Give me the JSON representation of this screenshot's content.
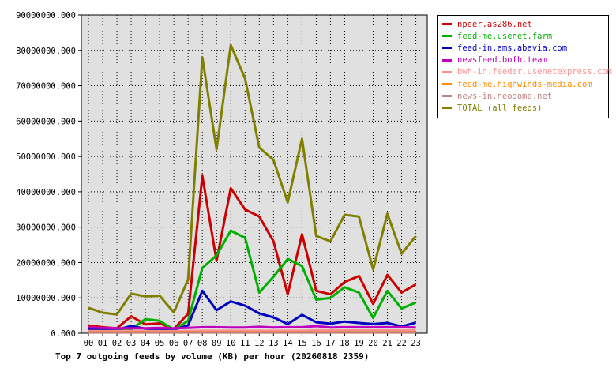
{
  "chart_data": {
    "type": "line",
    "title": "Top 7 outgoing feeds by volume (KB) per hour (20260818 2359)",
    "xlabel": "",
    "ylabel": "",
    "x": [
      "00",
      "01",
      "02",
      "03",
      "04",
      "05",
      "06",
      "07",
      "08",
      "09",
      "10",
      "11",
      "12",
      "13",
      "14",
      "15",
      "16",
      "17",
      "18",
      "19",
      "20",
      "21",
      "22",
      "23"
    ],
    "y_ticks": [
      "0.000",
      "10000000.000",
      "20000000.000",
      "30000000.000",
      "40000000.000",
      "50000000.000",
      "60000000.000",
      "70000000.000",
      "80000000.000",
      "90000000.000"
    ],
    "ylim": [
      0,
      90000000
    ],
    "grid": true,
    "legend_position": "right",
    "background": "#e0e0e0",
    "series": [
      {
        "name": "npeer.as286.net",
        "color": "#cc0000",
        "values": [
          2200000,
          1700000,
          1400000,
          4800000,
          2500000,
          2800000,
          1200000,
          5500000,
          44500000,
          20500000,
          41000000,
          35000000,
          33000000,
          26000000,
          11000000,
          28000000,
          12000000,
          11000000,
          14500000,
          16200000,
          8300000,
          16500000,
          11500000,
          13800000
        ]
      },
      {
        "name": "feed-me.usenet.farm",
        "color": "#00b000",
        "values": [
          1300000,
          1200000,
          1100000,
          1100000,
          4000000,
          3500000,
          1000000,
          3500000,
          18500000,
          22000000,
          29000000,
          27000000,
          11500000,
          16000000,
          21000000,
          19000000,
          9500000,
          10000000,
          13000000,
          11500000,
          4300000,
          12000000,
          7000000,
          8700000
        ]
      },
      {
        "name": "feed-in.ams.abavia.com",
        "color": "#0000c0",
        "values": [
          1000000,
          1000000,
          1000000,
          2000000,
          1300000,
          1000000,
          1000000,
          2200000,
          12000000,
          6500000,
          9000000,
          7800000,
          5600000,
          4500000,
          2600000,
          5200000,
          3100000,
          2700000,
          3300000,
          2900000,
          2600000,
          2900000,
          1900000,
          3000000
        ]
      },
      {
        "name": "newsfeed.bofh.team",
        "color": "#c000c0",
        "values": [
          1600000,
          1500000,
          1400000,
          1400000,
          1400000,
          1500000,
          1400000,
          1500000,
          1700000,
          1700000,
          1600000,
          1600000,
          1800000,
          1600000,
          1700000,
          1700000,
          2000000,
          1600000,
          1700000,
          1700000,
          1700000,
          1700000,
          1700000,
          1600000
        ]
      },
      {
        "name": "bwh-in.feeder.usenetexpress.com",
        "color": "#ff9090",
        "values": [
          600000,
          600000,
          600000,
          600000,
          600000,
          600000,
          600000,
          600000,
          700000,
          700000,
          700000,
          700000,
          700000,
          700000,
          700000,
          700000,
          800000,
          800000,
          800000,
          800000,
          800000,
          800000,
          800000,
          800000
        ]
      },
      {
        "name": "feed-me.highwinds-media.com",
        "color": "#ff8c00",
        "values": [
          300000,
          300000,
          300000,
          300000,
          300000,
          300000,
          300000,
          300000,
          300000,
          300000,
          300000,
          300000,
          300000,
          300000,
          300000,
          300000,
          300000,
          300000,
          300000,
          300000,
          300000,
          300000,
          300000,
          300000
        ]
      },
      {
        "name": "news-in.neodome.net",
        "color": "#c08080",
        "values": [
          200000,
          200000,
          200000,
          200000,
          200000,
          200000,
          200000,
          200000,
          200000,
          200000,
          200000,
          200000,
          200000,
          200000,
          200000,
          200000,
          200000,
          200000,
          200000,
          200000,
          200000,
          200000,
          200000,
          200000
        ]
      },
      {
        "name": "TOTAL (all feeds)",
        "color": "#808000",
        "values": [
          7200000,
          5800000,
          5300000,
          11200000,
          10400000,
          10600000,
          5900000,
          15200000,
          78000000,
          52000000,
          81500000,
          72000000,
          52500000,
          49000000,
          37000000,
          55000000,
          27500000,
          26000000,
          33500000,
          33000000,
          18000000,
          33800000,
          22500000,
          27500000
        ]
      }
    ]
  }
}
